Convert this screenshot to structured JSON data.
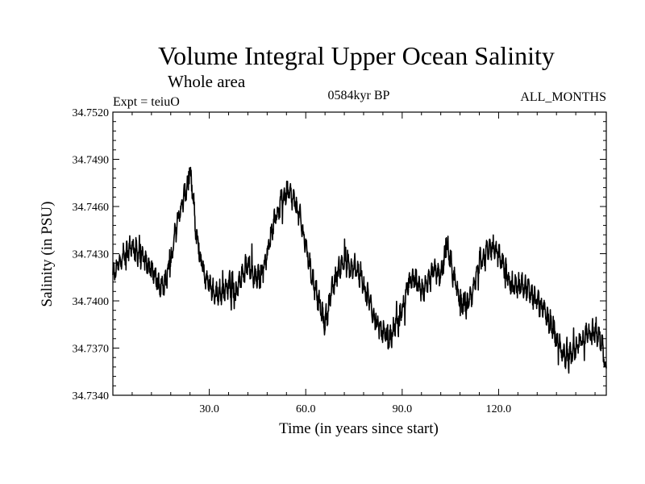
{
  "chart_data": {
    "type": "line",
    "title": "Volume Integral Upper Ocean Salinity",
    "subtitle": "Whole area",
    "experiment_label": "Expt = teiuO",
    "period_label": "0584kyr BP",
    "months_label": "ALL_MONTHS",
    "xlabel": "Time (in years since start)",
    "ylabel": "Salinity (in PSU)",
    "xlim": [
      0,
      153.5
    ],
    "ylim": [
      34.734,
      34.752
    ],
    "x_ticks": [
      30,
      60,
      90,
      120
    ],
    "x_tick_labels": [
      "30.0",
      "60.0",
      "90.0",
      "120.0"
    ],
    "y_ticks": [
      34.734,
      34.737,
      34.74,
      34.743,
      34.746,
      34.749,
      34.752
    ],
    "y_tick_labels": [
      "34.7340",
      "34.7370",
      "34.7400",
      "34.7430",
      "34.7460",
      "34.7490",
      "34.7520"
    ],
    "grid": false,
    "series": [
      {
        "name": "Salinity",
        "x": [
          0,
          2,
          4,
          6,
          8,
          10,
          12,
          14,
          16,
          18,
          20,
          22,
          23.5,
          24,
          25,
          26,
          28,
          30,
          32,
          34,
          36,
          38,
          40,
          42,
          44,
          46,
          48,
          50,
          52,
          54,
          56,
          58,
          60,
          62,
          64,
          66,
          68,
          70,
          72,
          74,
          76,
          78,
          80,
          82,
          84,
          86,
          88,
          90,
          92,
          94,
          96,
          98,
          100,
          102,
          104,
          106,
          108,
          110,
          112,
          114,
          116,
          118,
          120,
          122,
          124,
          126,
          128,
          130,
          132,
          134,
          136,
          138,
          140,
          142,
          144,
          146,
          148,
          150,
          152,
          153.5
        ],
        "values": [
          34.7415,
          34.7425,
          34.743,
          34.7435,
          34.743,
          34.7425,
          34.742,
          34.741,
          34.741,
          34.7425,
          34.745,
          34.7465,
          34.7475,
          34.748,
          34.7465,
          34.744,
          34.742,
          34.741,
          34.7405,
          34.7405,
          34.741,
          34.7405,
          34.7415,
          34.7425,
          34.7415,
          34.7415,
          34.743,
          34.745,
          34.746,
          34.747,
          34.7465,
          34.7455,
          34.7435,
          34.7415,
          34.74,
          34.7385,
          34.7405,
          34.742,
          34.7425,
          34.742,
          34.742,
          34.741,
          34.74,
          34.7385,
          34.738,
          34.7375,
          34.7385,
          34.7395,
          34.741,
          34.7415,
          34.7405,
          34.741,
          34.742,
          34.7415,
          34.7435,
          34.7415,
          34.74,
          34.7395,
          34.7405,
          34.7425,
          34.743,
          34.7435,
          34.743,
          34.742,
          34.741,
          34.741,
          34.741,
          34.7405,
          34.74,
          34.7395,
          34.7385,
          34.7375,
          34.7365,
          34.7365,
          34.737,
          34.7375,
          34.738,
          34.738,
          34.7375,
          34.7355
        ]
      }
    ]
  }
}
